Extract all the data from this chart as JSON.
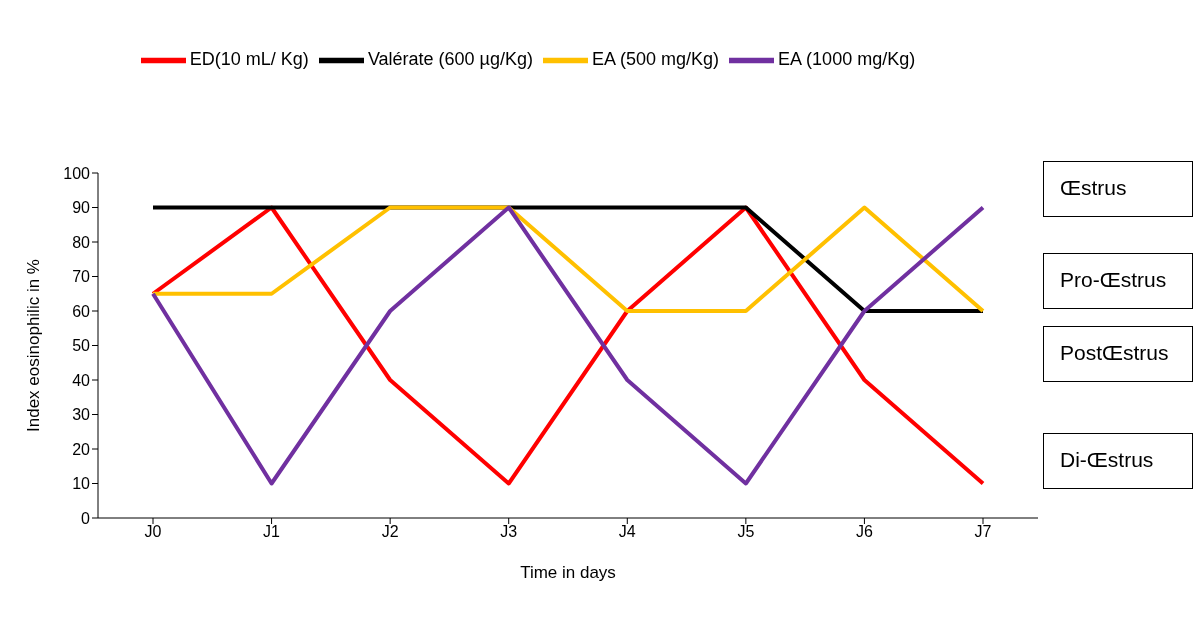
{
  "chart_data": {
    "type": "line",
    "xlabel": "Time in days",
    "ylabel": "Index eosinophilic in %",
    "categories": [
      "J0",
      "J1",
      "J2",
      "J3",
      "J4",
      "J5",
      "J6",
      "J7"
    ],
    "series": [
      {
        "name": "ED(10 mL/ Kg)",
        "color": "#ff0000",
        "values": [
          65,
          90,
          40,
          10,
          60,
          90,
          40,
          10
        ]
      },
      {
        "name": "Valérate (600 µg/Kg)",
        "color": "#000000",
        "values": [
          90,
          90,
          90,
          90,
          90,
          90,
          60,
          60
        ]
      },
      {
        "name": "EA (500 mg/Kg)",
        "color": "#ffc000",
        "values": [
          65,
          65,
          90,
          90,
          60,
          60,
          90,
          60
        ]
      },
      {
        "name": "EA (1000 mg/Kg)",
        "color": "#7030a0",
        "values": [
          65,
          10,
          60,
          90,
          40,
          10,
          60,
          90
        ]
      }
    ],
    "ylim": [
      0,
      100
    ],
    "yticks": [
      0,
      10,
      20,
      30,
      40,
      50,
      60,
      70,
      80,
      90,
      100
    ],
    "legend": "top",
    "marker": "none",
    "line_style": "solid",
    "annotations": [
      "Œstrus",
      "Pro-Œstrus",
      "PostŒstrus",
      "Di-Œstrus"
    ]
  }
}
